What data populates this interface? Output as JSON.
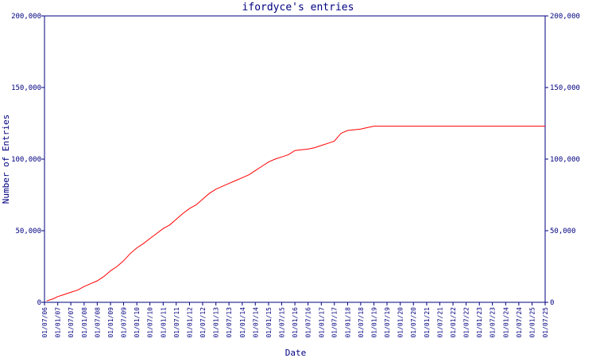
{
  "chart_data": {
    "type": "line",
    "title": "ifordyce's entries",
    "xlabel": "Date",
    "ylabel": "Number of Entries",
    "ylim": [
      0,
      200000
    ],
    "y_ticks": [
      0,
      50000,
      100000,
      150000,
      200000
    ],
    "y_tick_labels": [
      "0",
      "50,000",
      "100,000",
      "150,000",
      "200,000"
    ],
    "grid": false,
    "secondary_y_axis": "right (mirrors left)",
    "x_tick_labels": [
      "01/07/06",
      "01/01/07",
      "01/07/07",
      "01/01/08",
      "01/07/08",
      "01/01/09",
      "01/07/09",
      "01/01/10",
      "01/07/10",
      "01/01/11",
      "01/07/11",
      "01/01/12",
      "01/07/12",
      "01/01/13",
      "01/07/13",
      "01/01/14",
      "01/07/14",
      "01/01/15",
      "01/07/15",
      "01/01/16",
      "01/07/16",
      "01/01/17",
      "01/07/17",
      "01/01/18",
      "01/07/18",
      "01/01/19",
      "01/07/19",
      "01/01/20",
      "01/07/20",
      "01/01/21",
      "01/07/21",
      "01/01/22",
      "01/07/22",
      "01/01/23",
      "01/07/23",
      "01/01/24",
      "01/07/24",
      "01/01/25",
      "01/07/25"
    ],
    "series": [
      {
        "color": "#ff0000",
        "x": [
          "2006-08-01",
          "2006-11-01",
          "2007-01-01",
          "2007-04-01",
          "2007-07-01",
          "2007-10-01",
          "2008-01-01",
          "2008-04-01",
          "2008-07-01",
          "2008-10-01",
          "2009-01-01",
          "2009-04-01",
          "2009-07-01",
          "2009-10-01",
          "2010-01-01",
          "2010-04-01",
          "2010-07-01",
          "2010-10-01",
          "2011-01-01",
          "2011-04-01",
          "2011-07-01",
          "2011-10-01",
          "2012-01-01",
          "2012-04-01",
          "2012-07-01",
          "2012-10-01",
          "2013-01-01",
          "2013-04-01",
          "2013-07-01",
          "2013-10-01",
          "2014-01-01",
          "2014-04-01",
          "2014-07-01",
          "2014-10-01",
          "2015-01-01",
          "2015-04-01",
          "2015-07-01",
          "2015-10-01",
          "2016-01-01",
          "2016-04-01",
          "2016-07-01",
          "2016-10-01",
          "2017-01-01",
          "2017-04-01",
          "2017-07-01",
          "2017-10-01",
          "2018-01-01",
          "2018-04-01",
          "2018-07-01",
          "2018-10-01",
          "2019-01-01",
          "2019-04-01",
          "2019-07-01",
          "2025-07-01"
        ],
        "y": [
          1000,
          2500,
          4000,
          5500,
          7000,
          8500,
          11000,
          13000,
          15000,
          18000,
          22000,
          25000,
          29000,
          34000,
          38000,
          41000,
          44500,
          48000,
          51500,
          54000,
          58000,
          62000,
          65500,
          68000,
          72000,
          76000,
          79000,
          81000,
          83000,
          85000,
          87000,
          89000,
          92000,
          95000,
          98000,
          100000,
          101500,
          103000,
          106000,
          106500,
          107000,
          108000,
          109500,
          111000,
          112500,
          118000,
          120000,
          120500,
          121000,
          122000,
          123000,
          123000,
          123000,
          123000
        ]
      }
    ]
  }
}
